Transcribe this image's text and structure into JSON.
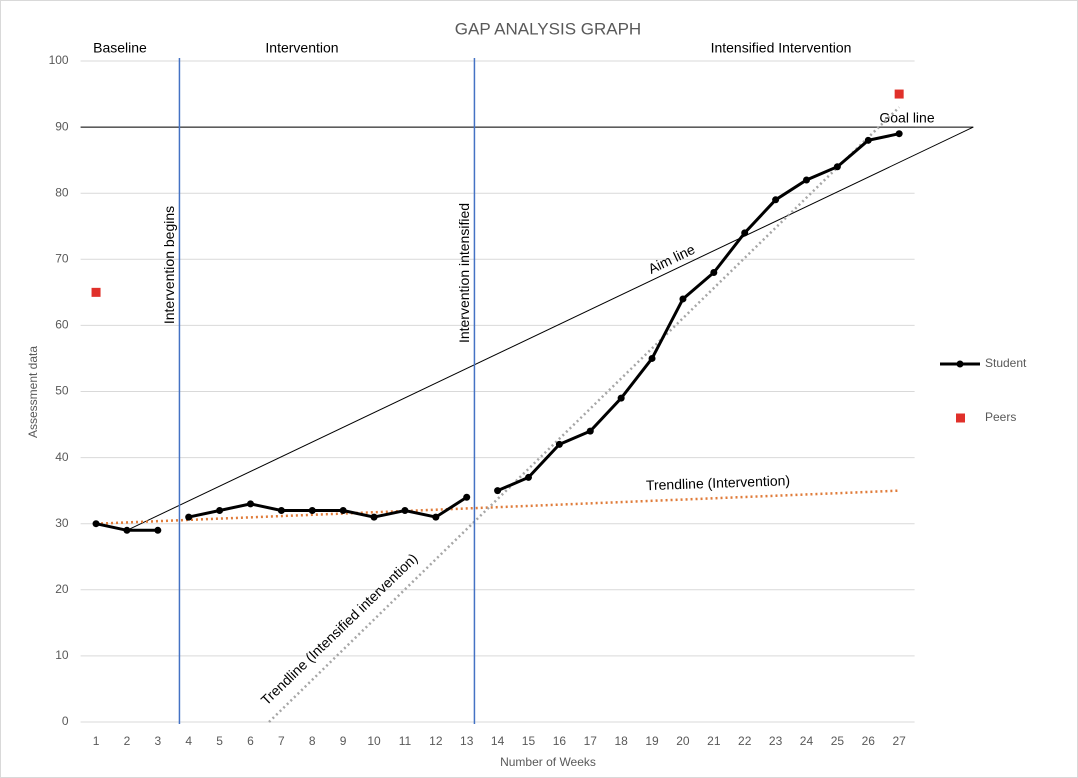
{
  "chart_data": {
    "type": "line",
    "title": "GAP ANALYSIS GRAPH",
    "x_label": "Number of Weeks",
    "y_label": "Assessment data",
    "x": [
      1,
      2,
      3,
      4,
      5,
      6,
      7,
      8,
      9,
      10,
      11,
      12,
      13,
      14,
      15,
      16,
      17,
      18,
      19,
      20,
      21,
      22,
      23,
      24,
      25,
      26,
      27
    ],
    "xlim": [
      0.5,
      27.5
    ],
    "xticks": [
      1,
      2,
      3,
      4,
      5,
      6,
      7,
      8,
      9,
      10,
      11,
      12,
      13,
      14,
      15,
      16,
      17,
      18,
      19,
      20,
      21,
      22,
      23,
      24,
      25,
      26,
      27
    ],
    "ylim": [
      0,
      100
    ],
    "yticks": [
      0,
      10,
      20,
      30,
      40,
      50,
      60,
      70,
      80,
      90,
      100
    ],
    "grid": true,
    "legend": "right",
    "series": [
      {
        "name": "Student",
        "color": "#000000",
        "marker": "circle",
        "values": [
          30,
          29,
          29,
          31,
          32,
          33,
          32,
          32,
          32,
          31,
          32,
          31,
          34,
          35,
          37,
          42,
          44,
          49,
          55,
          64,
          68,
          74,
          79,
          82,
          84,
          88,
          89
        ]
      },
      {
        "name": "Peers",
        "color": "#e0302a",
        "marker": "square",
        "line": false,
        "values": [
          65,
          null,
          null,
          null,
          null,
          null,
          null,
          null,
          null,
          null,
          null,
          null,
          null,
          null,
          null,
          null,
          null,
          null,
          null,
          null,
          null,
          null,
          null,
          null,
          null,
          null,
          95
        ]
      }
    ],
    "sections": [
      "Baseline",
      "Intervention",
      "Intensified Intervention"
    ],
    "phase_lines": [
      {
        "label": "Intervention begins",
        "x": 3.7,
        "color": "#4472c4"
      },
      {
        "label": "Intervention intensified",
        "x": 13.25,
        "color": "#4472c4"
      }
    ],
    "reference_lines": [
      {
        "label": "Goal line",
        "x": [
          0.5,
          29.4
        ],
        "y": [
          90,
          90
        ],
        "color": "#000000",
        "style": "solid"
      },
      {
        "label": "Aim line",
        "x": [
          2,
          29.4
        ],
        "y": [
          29,
          90
        ],
        "color": "#000000",
        "style": "solid"
      },
      {
        "label": "Trendline (Intervention)",
        "x": [
          1,
          27
        ],
        "y": [
          30,
          35
        ],
        "color": "#e07b39",
        "style": "dotted"
      },
      {
        "label": "Trendline (Intensified intervention)",
        "x": [
          6.6,
          27
        ],
        "y": [
          0,
          93
        ],
        "color": "#a6a6a6",
        "style": "dotted"
      }
    ]
  }
}
